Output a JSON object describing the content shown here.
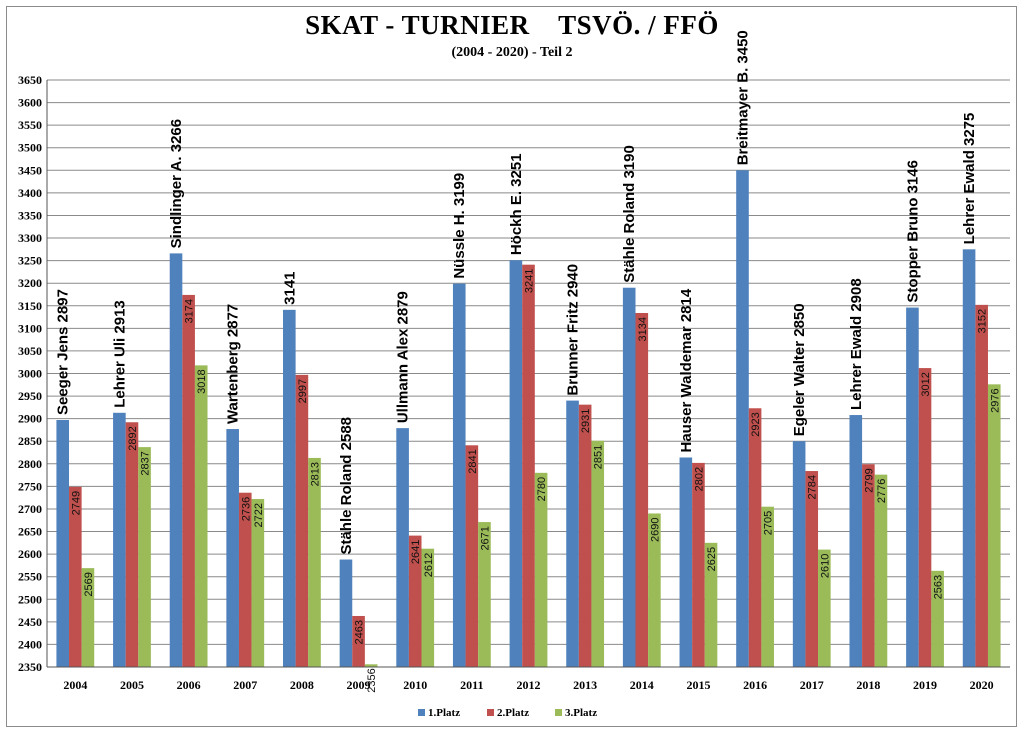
{
  "chart_data": {
    "type": "bar",
    "title": "SKAT - TURNIER    TSVÖ. / FFÖ",
    "subtitle": "(2004 - 2020) - Teil 2",
    "categories": [
      "2004",
      "2005",
      "2006",
      "2007",
      "2008",
      "2009",
      "2010",
      "2011",
      "2012",
      "2013",
      "2014",
      "2015",
      "2016",
      "2017",
      "2018",
      "2019",
      "2020"
    ],
    "series": [
      {
        "name": "1.Platz",
        "color": "#4f81bd",
        "values": [
          2897,
          2913,
          3266,
          2877,
          3141,
          2588,
          2879,
          3199,
          3251,
          2940,
          3190,
          2814,
          3450,
          2850,
          2908,
          3146,
          3275
        ]
      },
      {
        "name": "2.Platz",
        "color": "#c0504d",
        "values": [
          2749,
          2892,
          3174,
          2736,
          2997,
          2463,
          2641,
          2841,
          3241,
          2931,
          3134,
          2802,
          2923,
          2784,
          2799,
          3012,
          3152
        ]
      },
      {
        "name": "3.Platz",
        "color": "#9bbb59",
        "values": [
          2569,
          2837,
          3018,
          2722,
          2813,
          2356,
          2612,
          2671,
          2780,
          2851,
          2690,
          2625,
          2705,
          2610,
          2776,
          2563,
          2976
        ]
      }
    ],
    "winner_labels": [
      "Seeger Jens  2897",
      "Lehrer Uli  2913",
      "Sindlinger A.  3266",
      "Wartenberg  2877",
      "3141",
      "Stähle Roland  2588",
      "Ullmann Alex  2879",
      "Nüssle H.  3199",
      "Höckh E.  3251",
      "Brunner Fritz  2940",
      "Stähle Roland  3190",
      "Hauser Waldemar 2814",
      "Breitmayer B. 3450",
      "Egeler Walter  2850",
      "Lehrer Ewald  2908",
      "Stopper Bruno  3146",
      "Lehrer Ewald 3275"
    ],
    "ylim": [
      2350,
      3650
    ],
    "ytick_step": 50,
    "xlabel": "",
    "ylabel": "",
    "grid": "horizontal",
    "legend": "bottom"
  }
}
